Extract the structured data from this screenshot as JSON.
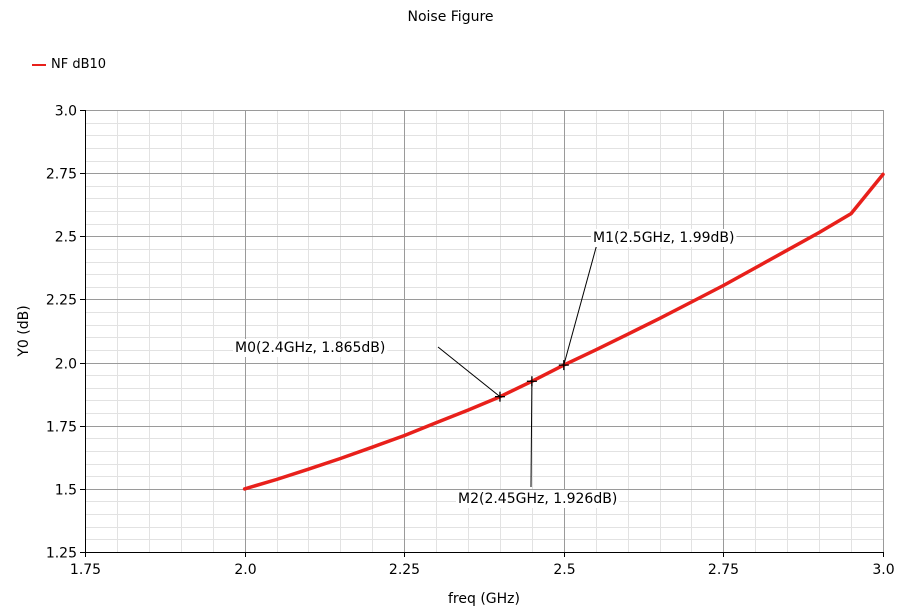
{
  "chart_data": {
    "type": "line",
    "title": "Noise Figure",
    "xlabel": "freq (GHz)",
    "ylabel": "Y0 (dB)",
    "xlim": [
      1.75,
      3.0
    ],
    "ylim": [
      1.25,
      3.0
    ],
    "x_ticks": [
      "1.75",
      "2.0",
      "2.25",
      "2.5",
      "2.75",
      "3.0"
    ],
    "y_ticks": [
      "1.25",
      "1.5",
      "1.75",
      "2.0",
      "2.25",
      "2.5",
      "2.75",
      "3.0"
    ],
    "grid": true,
    "legend_position": "top-left",
    "series": [
      {
        "name": "NF dB10",
        "color": "#e8201b",
        "x": [
          2.0,
          2.05,
          2.1,
          2.15,
          2.2,
          2.25,
          2.3,
          2.35,
          2.4,
          2.45,
          2.5,
          2.55,
          2.6,
          2.65,
          2.7,
          2.75,
          2.8,
          2.85,
          2.9,
          2.95,
          3.0
        ],
        "y": [
          1.5,
          1.537,
          1.578,
          1.62,
          1.665,
          1.711,
          1.762,
          1.812,
          1.865,
          1.926,
          1.99,
          2.05,
          2.112,
          2.175,
          2.24,
          2.305,
          2.375,
          2.445,
          2.515,
          2.59,
          2.745
        ]
      }
    ],
    "markers": [
      {
        "label": "M0(2.4GHz, 1.865dB)",
        "x": 2.4,
        "y": 1.865
      },
      {
        "label": "M1(2.5GHz, 1.99dB)",
        "x": 2.5,
        "y": 1.99
      },
      {
        "label": "M2(2.45GHz, 1.926dB)",
        "x": 2.45,
        "y": 1.926
      }
    ]
  }
}
